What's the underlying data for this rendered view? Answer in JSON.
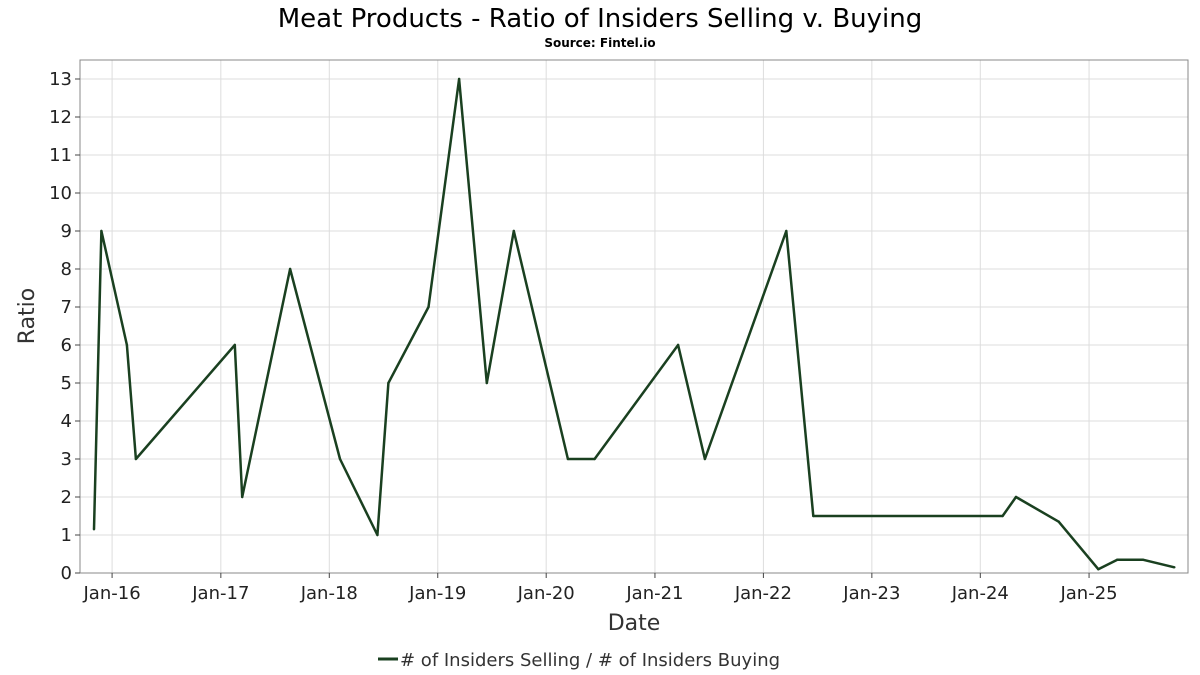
{
  "chart_data": {
    "type": "line",
    "title": "Meat Products - Ratio of Insiders Selling v. Buying",
    "subtitle": "Source: Fintel.io",
    "xlabel": "Date",
    "ylabel": "Ratio",
    "ylim": [
      0,
      13.5
    ],
    "xlim": [
      "2015-09-15",
      "2025-11-30"
    ],
    "yticks": [
      0,
      1,
      2,
      3,
      4,
      5,
      6,
      7,
      8,
      9,
      10,
      11,
      12,
      13
    ],
    "xticks": [
      {
        "date": "2016-01-01",
        "label": "Jan-16"
      },
      {
        "date": "2017-01-01",
        "label": "Jan-17"
      },
      {
        "date": "2018-01-01",
        "label": "Jan-18"
      },
      {
        "date": "2019-01-01",
        "label": "Jan-19"
      },
      {
        "date": "2020-01-01",
        "label": "Jan-20"
      },
      {
        "date": "2021-01-01",
        "label": "Jan-21"
      },
      {
        "date": "2022-01-01",
        "label": "Jan-22"
      },
      {
        "date": "2023-01-01",
        "label": "Jan-23"
      },
      {
        "date": "2024-01-01",
        "label": "Jan-24"
      },
      {
        "date": "2025-01-01",
        "label": "Jan-25"
      }
    ],
    "grid": true,
    "legend_position": "bottom-center",
    "series": [
      {
        "name": "# of Insiders Selling / # of Insiders Buying",
        "color": "#1a4020",
        "points": [
          {
            "x": "2015-11-01",
            "y": 1.15
          },
          {
            "x": "2015-11-26",
            "y": 9
          },
          {
            "x": "2016-02-20",
            "y": 6
          },
          {
            "x": "2016-03-21",
            "y": 3
          },
          {
            "x": "2017-02-17",
            "y": 6
          },
          {
            "x": "2017-03-14",
            "y": 2
          },
          {
            "x": "2017-08-22",
            "y": 8
          },
          {
            "x": "2018-02-06",
            "y": 3
          },
          {
            "x": "2018-06-12",
            "y": 1
          },
          {
            "x": "2018-07-19",
            "y": 5
          },
          {
            "x": "2018-12-01",
            "y": 7
          },
          {
            "x": "2019-03-14",
            "y": 13
          },
          {
            "x": "2019-06-15",
            "y": 5
          },
          {
            "x": "2019-09-14",
            "y": 9
          },
          {
            "x": "2020-03-14",
            "y": 3
          },
          {
            "x": "2020-06-12",
            "y": 3
          },
          {
            "x": "2021-03-20",
            "y": 6
          },
          {
            "x": "2021-06-18",
            "y": 3
          },
          {
            "x": "2022-03-19",
            "y": 9
          },
          {
            "x": "2022-06-18",
            "y": 1.5
          },
          {
            "x": "2024-03-16",
            "y": 1.5
          },
          {
            "x": "2024-04-30",
            "y": 2
          },
          {
            "x": "2024-09-21",
            "y": 1.35
          },
          {
            "x": "2025-02-01",
            "y": 0.1
          },
          {
            "x": "2025-04-06",
            "y": 0.35
          },
          {
            "x": "2025-07-01",
            "y": 0.35
          },
          {
            "x": "2025-10-15",
            "y": 0.15
          }
        ]
      }
    ]
  }
}
